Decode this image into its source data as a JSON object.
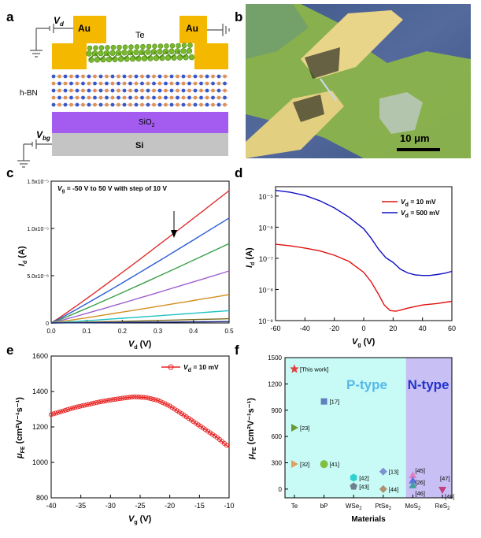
{
  "panel_letters": {
    "a": "a",
    "b": "b",
    "c": "c",
    "d": "d",
    "e": "e",
    "f": "f"
  },
  "schematic": {
    "vd_label": "V",
    "vd_sub": "d",
    "vbg_label": "V",
    "vbg_sub": "bg",
    "au_left": "Au",
    "au_right": "Au",
    "te": "Te",
    "hbn": "h-BN",
    "sio2_main": "SiO",
    "sio2_sub": "2",
    "si": "Si",
    "colors": {
      "au": "#f5b800",
      "sio2": "#a45cf0",
      "si": "#c4c4c4",
      "te_atom": "#7ab82c",
      "bn_blue": "#3a57c9",
      "bn_orange": "#e0905a"
    }
  },
  "micrograph": {
    "scale_bar": "10 μm"
  },
  "chart_data": [
    {
      "panel": "c",
      "type": "line",
      "title": "",
      "annotation": "V_g = -50 V to 50 V with step of 10 V",
      "annotation_parts": [
        "V",
        "g",
        " = -50 V to 50 V with step of 10 V"
      ],
      "xlabel_main": "V",
      "xlabel_sub": "d",
      "xlabel_unit": " (V)",
      "ylabel_main": "I",
      "ylabel_sub": "d",
      "ylabel_unit": " (A)",
      "xlim": [
        0,
        0.5
      ],
      "ylim": [
        0,
        1.5e-05
      ],
      "xticks": [
        "0.0",
        "0.1",
        "0.2",
        "0.3",
        "0.4",
        "0.5"
      ],
      "yticks": [
        "0",
        "5.0x10⁻⁶",
        "1.0x10⁻⁵",
        "1.5x10⁻⁵"
      ],
      "series": [
        {
          "name": "Vg=50 V",
          "color": "#e03030",
          "end": 1.4e-05
        },
        {
          "name": "Vg=40 V",
          "color": "#2a5bd6",
          "end": 1.11e-05
        },
        {
          "name": "Vg=30 V",
          "color": "#3aa04a",
          "end": 8.4e-06
        },
        {
          "name": "Vg=20 V",
          "color": "#a060d0",
          "end": 5.5e-06
        },
        {
          "name": "Vg=10 V",
          "color": "#d09020",
          "end": 3e-06
        },
        {
          "name": "Vg=0 V",
          "color": "#22c2c2",
          "end": 1.3e-06
        },
        {
          "name": "Vg=-10 V",
          "color": "#7a6a20",
          "end": 4.5e-07
        },
        {
          "name": "Vg=-20 V",
          "color": "#1a2a80",
          "end": 1.5e-07
        }
      ]
    },
    {
      "panel": "d",
      "type": "line",
      "xlabel_main": "V",
      "xlabel_sub": "g",
      "xlabel_unit": " (V)",
      "ylabel_main": "I",
      "ylabel_sub": "d",
      "ylabel_unit": " (A)",
      "xlim": [
        -60,
        60
      ],
      "ylim_log10": [
        -9,
        -4.7
      ],
      "xticks": [
        "-60",
        "-40",
        "-20",
        "0",
        "20",
        "40",
        "60"
      ],
      "yticks": [
        "10⁻⁹",
        "10⁻⁸",
        "10⁻⁷",
        "10⁻⁶",
        "10⁻⁵"
      ],
      "legend": [
        {
          "label_main": "V",
          "label_sub": "d",
          "label_rest": " = 10 mV",
          "color": "#e01010"
        },
        {
          "label_main": "V",
          "label_sub": "d",
          "label_rest": " = 500 mV",
          "color": "#1010c0"
        }
      ],
      "series": [
        {
          "name": "Vd = 10 mV",
          "color": "#e01010",
          "x": [
            -60,
            -50,
            -40,
            -30,
            -20,
            -10,
            0,
            5,
            10,
            14,
            18,
            22,
            26,
            30,
            40,
            50,
            60
          ],
          "log10_y": [
            -6.55,
            -6.6,
            -6.67,
            -6.76,
            -6.9,
            -7.1,
            -7.45,
            -7.75,
            -8.15,
            -8.5,
            -8.68,
            -8.7,
            -8.65,
            -8.6,
            -8.5,
            -8.45,
            -8.38
          ]
        },
        {
          "name": "Vd = 500 mV",
          "color": "#1010c0",
          "x": [
            -60,
            -50,
            -40,
            -30,
            -20,
            -10,
            0,
            5,
            10,
            15,
            20,
            25,
            30,
            35,
            40,
            45,
            50,
            55,
            60
          ],
          "log10_y": [
            -4.82,
            -4.88,
            -4.98,
            -5.15,
            -5.38,
            -5.68,
            -6.05,
            -6.35,
            -6.7,
            -6.98,
            -7.13,
            -7.35,
            -7.47,
            -7.53,
            -7.55,
            -7.55,
            -7.52,
            -7.48,
            -7.42
          ]
        }
      ]
    },
    {
      "panel": "e",
      "type": "scatter",
      "xlabel_main": "V",
      "xlabel_sub": "g",
      "xlabel_unit": " (V)",
      "ylabel_main": "μ",
      "ylabel_sub": "FE",
      "ylabel_unit": " (cm²V⁻¹s⁻¹)",
      "xlim": [
        -40,
        -10
      ],
      "ylim": [
        800,
        1600
      ],
      "xticks": [
        "-40",
        "-35",
        "-30",
        "-25",
        "-20",
        "-15",
        "-10"
      ],
      "yticks": [
        "800",
        "1000",
        "1200",
        "1400",
        "1600"
      ],
      "legend": [
        {
          "label_main": "V",
          "label_sub": "d",
          "label_rest": " = 10 mV",
          "color": "#e82020"
        }
      ],
      "x": [
        -40,
        -38,
        -36,
        -34,
        -32,
        -30,
        -28,
        -26,
        -24,
        -22,
        -20,
        -18,
        -16,
        -14,
        -12,
        -10
      ],
      "y": [
        1270,
        1290,
        1310,
        1325,
        1340,
        1352,
        1362,
        1370,
        1366,
        1350,
        1318,
        1275,
        1230,
        1185,
        1140,
        1085
      ],
      "color": "#e82020"
    },
    {
      "panel": "f",
      "type": "scatter",
      "xlabel": "Materials",
      "ylabel_main": "μ",
      "ylabel_sub": "FE",
      "ylabel_unit": " (cm²V⁻¹s⁻¹)",
      "ylim": [
        -100,
        1500
      ],
      "yticks": [
        "0",
        "300",
        "600",
        "900",
        "1200",
        "1500"
      ],
      "categories": [
        {
          "main": "Te",
          "sub": ""
        },
        {
          "main": "bP",
          "sub": ""
        },
        {
          "main": "WSe",
          "sub": "2"
        },
        {
          "main": "PtSe",
          "sub": "2"
        },
        {
          "main": "MoS",
          "sub": "2"
        },
        {
          "main": "ReS",
          "sub": "2"
        }
      ],
      "region_p": "P-type",
      "region_n": "N-type",
      "points": [
        {
          "cat": 0,
          "y": 1370,
          "dx": 0,
          "label": "[This work]",
          "shape": "star",
          "color": "#e04040"
        },
        {
          "cat": 0,
          "y": 700,
          "dx": 0,
          "label": "[23]",
          "shape": "tri-right",
          "color": "#6a9a30"
        },
        {
          "cat": 0,
          "y": 285,
          "dx": 0,
          "label": "[32]",
          "shape": "tri-right",
          "color": "#e0a060"
        },
        {
          "cat": 1,
          "y": 1000,
          "dx": 0,
          "label": "[17]",
          "shape": "square",
          "color": "#6080c0"
        },
        {
          "cat": 1,
          "y": 285,
          "dx": 0,
          "label": "[41]",
          "shape": "circle",
          "color": "#80c040"
        },
        {
          "cat": 2,
          "y": 130,
          "dx": 0,
          "label": "[42]",
          "shape": "hexagon",
          "color": "#30d0d0"
        },
        {
          "cat": 2,
          "y": 30,
          "dx": 0,
          "label": "[43]",
          "shape": "pentagon",
          "color": "#708090"
        },
        {
          "cat": 3,
          "y": 200,
          "dx": 0,
          "label": "[13]",
          "shape": "diamond",
          "color": "#8090d0"
        },
        {
          "cat": 3,
          "y": 0,
          "dx": 0,
          "label": "[44]",
          "shape": "diamond",
          "color": "#b09070"
        },
        {
          "cat": 4,
          "y": 160,
          "dx": 0,
          "label": "[45]",
          "shape": "tri-up",
          "color": "#e080c0"
        },
        {
          "cat": 4,
          "y": 100,
          "dx": 0,
          "label": "[26]",
          "shape": "tri-up",
          "color": "#6070e0"
        },
        {
          "cat": 4,
          "y": 45,
          "dx": 0,
          "label": "[46]",
          "shape": "tri-up",
          "color": "#40a0a0"
        },
        {
          "cat": 5,
          "y": 70,
          "dx": 0,
          "label": "[47]",
          "shape": "none",
          "color": "#000000"
        },
        {
          "cat": 5,
          "y": -10,
          "dx": 0,
          "label": "[48]",
          "shape": "tri-down",
          "color": "#c04080"
        }
      ],
      "colors": {
        "p_region": "#c8fbf6",
        "n_region": "#c8bff5",
        "p_text": "#55b8ea",
        "n_text": "#2233cc"
      }
    }
  ]
}
